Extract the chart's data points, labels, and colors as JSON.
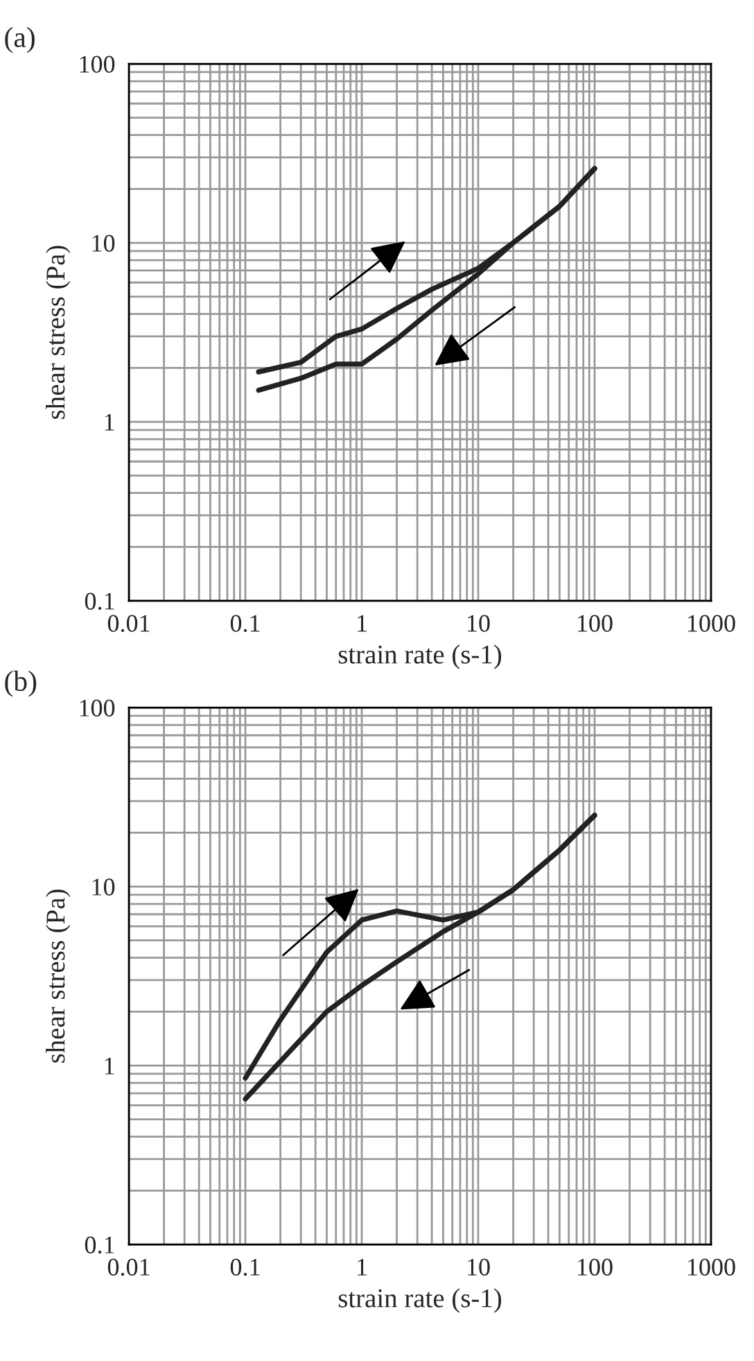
{
  "chart_data": [
    {
      "type": "line",
      "title": "(a)",
      "xlabel": "strain rate (s-1)",
      "ylabel": "shear stress (Pa)",
      "log": "xy",
      "grid": true,
      "legend": false,
      "marker": "none",
      "line_style": "solid",
      "xlim": [
        0.01,
        1000
      ],
      "ylim": [
        0.1,
        100
      ],
      "xticks": [
        0.01,
        0.1,
        1,
        10,
        100,
        1000
      ],
      "yticks": [
        0.1,
        1,
        10,
        100
      ],
      "series": [
        {
          "color": "#222222",
          "x": [
            0.13,
            0.3,
            0.6,
            1,
            2,
            4,
            10,
            20,
            50,
            100
          ],
          "values": [
            1.9,
            2.15,
            3.0,
            3.3,
            4.3,
            5.5,
            7.2,
            10,
            16,
            26
          ]
        },
        {
          "color": "#222222",
          "x": [
            0.13,
            0.3,
            0.6,
            1,
            2,
            4,
            10,
            20,
            50,
            100
          ],
          "values": [
            1.5,
            1.75,
            2.1,
            2.1,
            2.9,
            4.2,
            6.7,
            10,
            16,
            26
          ]
        }
      ]
    },
    {
      "type": "line",
      "title": "(b)",
      "xlabel": "strain rate (s-1)",
      "ylabel": "shear stress (Pa)",
      "log": "xy",
      "grid": true,
      "legend": false,
      "marker": "none",
      "line_style": "solid",
      "xlim": [
        0.01,
        1000
      ],
      "ylim": [
        0.1,
        100
      ],
      "xticks": [
        0.01,
        0.1,
        1,
        10,
        100,
        1000
      ],
      "yticks": [
        0.1,
        1,
        10,
        100
      ],
      "series": [
        {
          "color": "#222222",
          "x": [
            0.1,
            0.2,
            0.5,
            1,
            2,
            5,
            10,
            20,
            50,
            100
          ],
          "values": [
            0.85,
            1.8,
            4.3,
            6.5,
            7.3,
            6.5,
            7.2,
            9.6,
            16,
            25
          ]
        },
        {
          "color": "#222222",
          "x": [
            0.1,
            0.5,
            1,
            2,
            5,
            10,
            20,
            50,
            100
          ],
          "values": [
            0.65,
            2.0,
            2.8,
            3.8,
            5.6,
            7.2,
            9.6,
            16,
            25
          ]
        }
      ]
    }
  ]
}
